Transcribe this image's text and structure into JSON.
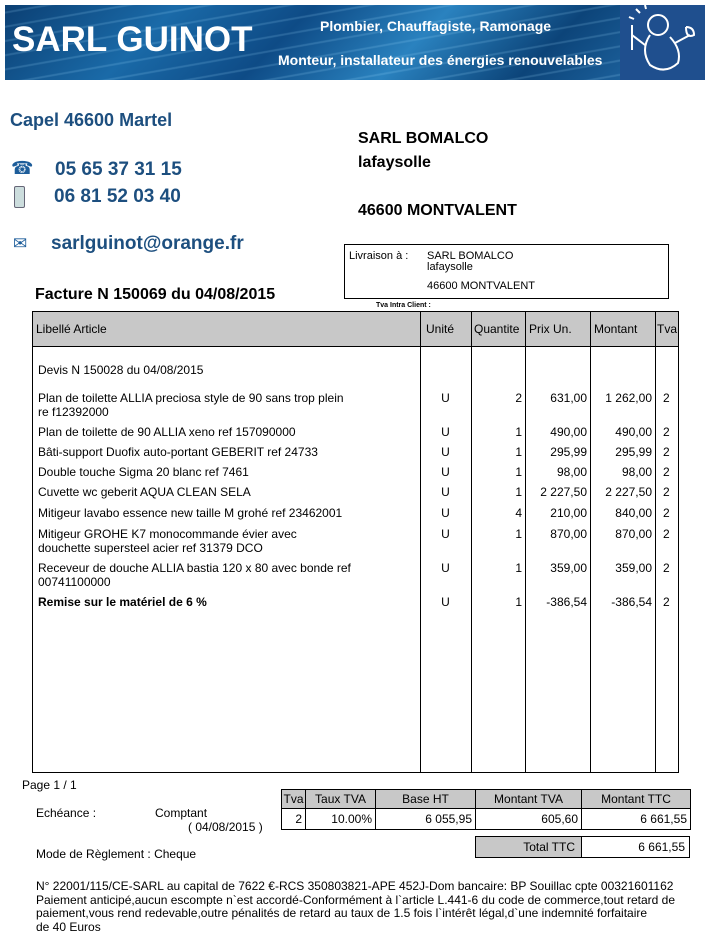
{
  "header": {
    "brand": "SARL GUINOT",
    "tagline1": "Plombier, Chauffagiste, Ramonage",
    "tagline2": "Monteur, installateur des énergies renouvelables",
    "logo": "plumber-mascot-icon"
  },
  "company": {
    "address": "Capel 46600 Martel",
    "phone": "05 65 37 31 15",
    "mobile": "06 81 52 03 40",
    "email": "sarlguinot@orange.fr"
  },
  "client": {
    "name": "SARL BOMALCO",
    "line2": "lafaysolle",
    "city": "46600 MONTVALENT"
  },
  "delivery": {
    "label": "Livraison à :",
    "name": "SARL BOMALCO",
    "line2": "lafaysolle",
    "city": "46600 MONTVALENT"
  },
  "tva_intra_label": "Tva Intra Client :",
  "invoice_title": "Facture N 150069 du 04/08/2015",
  "table": {
    "headers": [
      "Libellé Article",
      "Unité",
      "Quantite",
      "Prix Un.",
      "Montant",
      "Tva"
    ],
    "intro": "Devis N 150028 du 04/08/2015",
    "rows": [
      {
        "l1": "Plan de toilette  ALLIA preciosa style de 90 sans trop plein",
        "l2": "re f12392000",
        "u": "U",
        "q": "2",
        "p": "631,00",
        "m": "1 262,00",
        "t": "2"
      },
      {
        "l1": "Plan de toilette de 90 ALLIA xeno ref 157090000",
        "l2": "",
        "u": "U",
        "q": "1",
        "p": "490,00",
        "m": "490,00",
        "t": "2"
      },
      {
        "l1": "Bâti-support Duofix auto-portant GEBERIT ref 24733",
        "l2": "",
        "u": "U",
        "q": "1",
        "p": "295,99",
        "m": "295,99",
        "t": "2"
      },
      {
        "l1": "Double touche Sigma 20 blanc ref 7461",
        "l2": "",
        "u": "U",
        "q": "1",
        "p": "98,00",
        "m": "98,00",
        "t": "2"
      },
      {
        "l1": "Cuvette wc geberit AQUA CLEAN SELA",
        "l2": "",
        "u": "U",
        "q": "1",
        "p": "2 227,50",
        "m": "2 227,50",
        "t": "2"
      },
      {
        "l1": "Mitigeur lavabo essence new taille M grohé ref 23462001",
        "l2": "",
        "u": "U",
        "q": "4",
        "p": "210,00",
        "m": "840,00",
        "t": "2"
      },
      {
        "l1": "Mitigeur GROHE K7 monocommande évier avec",
        "l2": "douchette supersteel acier ref 31379 DCO",
        "u": "U",
        "q": "1",
        "p": "870,00",
        "m": "870,00",
        "t": "2"
      },
      {
        "l1": "Receveur de douche ALLIA bastia 120 x 80 avec bonde ref",
        "l2": "00741100000",
        "u": "U",
        "q": "1",
        "p": "359,00",
        "m": "359,00",
        "t": "2"
      },
      {
        "l1": "Remise sur le matériel de 6 %",
        "l2": "",
        "u": "U",
        "q": "1",
        "p": "-386,54",
        "m": "-386,54",
        "t": "2",
        "bold": true
      }
    ]
  },
  "page": "Page 1 / 1",
  "echeance": {
    "label": "Echéance :",
    "value": "Comptant",
    "date": "( 04/08/2015 )"
  },
  "payment": "Mode de Règlement : Cheque",
  "vat_table": {
    "headers": [
      "Tva",
      "Taux TVA",
      "Base HT",
      "Montant TVA",
      "Montant TTC"
    ],
    "row": [
      "2",
      "10.00%",
      "6 055,95",
      "605,60",
      "6 661,55"
    ]
  },
  "total": {
    "label": "Total TTC",
    "value": "6 661,55"
  },
  "footer": [
    "N° 22001/115/CE-SARL au capital de 7622 €-RCS 350803821-APE 452J-Dom bancaire: BP Souillac cpte 00321601162",
    "Paiement anticipé,aucun escompte n`est accordé-Conformément à l`article L.441-6 du code de commerce,tout retard de",
    "paiement,vous rend redevable,outre pénalités de retard au taux de 1.5 fois l`intérêt légal,d`une indemnité forfaitaire",
    "de 40 Euros"
  ]
}
